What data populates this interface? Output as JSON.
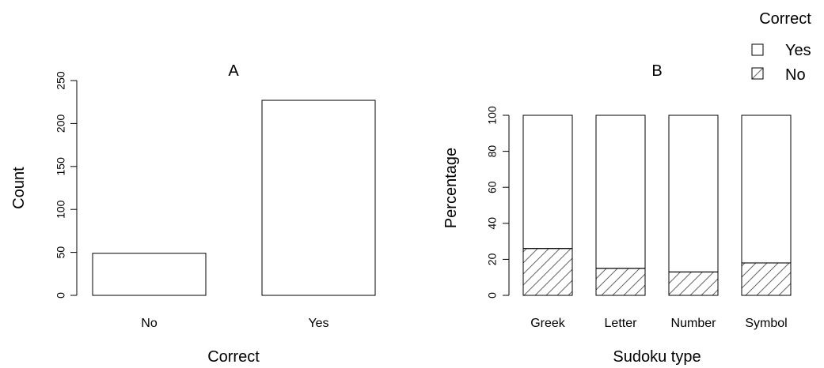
{
  "legend": {
    "title": "Correct",
    "items": [
      {
        "label": "Yes",
        "pattern": "none"
      },
      {
        "label": "No",
        "pattern": "hatch"
      }
    ]
  },
  "chart_data": [
    {
      "type": "bar",
      "title": "A",
      "xlabel": "Correct",
      "ylabel": "Count",
      "categories": [
        "No",
        "Yes"
      ],
      "values": [
        49,
        227
      ],
      "ylim": [
        0,
        250
      ],
      "yticks": [
        "0",
        "50",
        "100",
        "150",
        "200",
        "250"
      ],
      "grid": false
    },
    {
      "type": "bar",
      "stacked": true,
      "title": "B",
      "xlabel": "Sudoku type",
      "ylabel": "Percentage",
      "categories": [
        "Greek",
        "Letter",
        "Number",
        "Symbol"
      ],
      "series": [
        {
          "name": "No",
          "values": [
            26,
            15,
            13,
            18
          ]
        },
        {
          "name": "Yes",
          "values": [
            74,
            85,
            87,
            82
          ]
        }
      ],
      "ylim": [
        0,
        100
      ],
      "yticks": [
        "0",
        "20",
        "40",
        "60",
        "80",
        "100"
      ],
      "grid": false,
      "legend_position": "top-right"
    }
  ]
}
